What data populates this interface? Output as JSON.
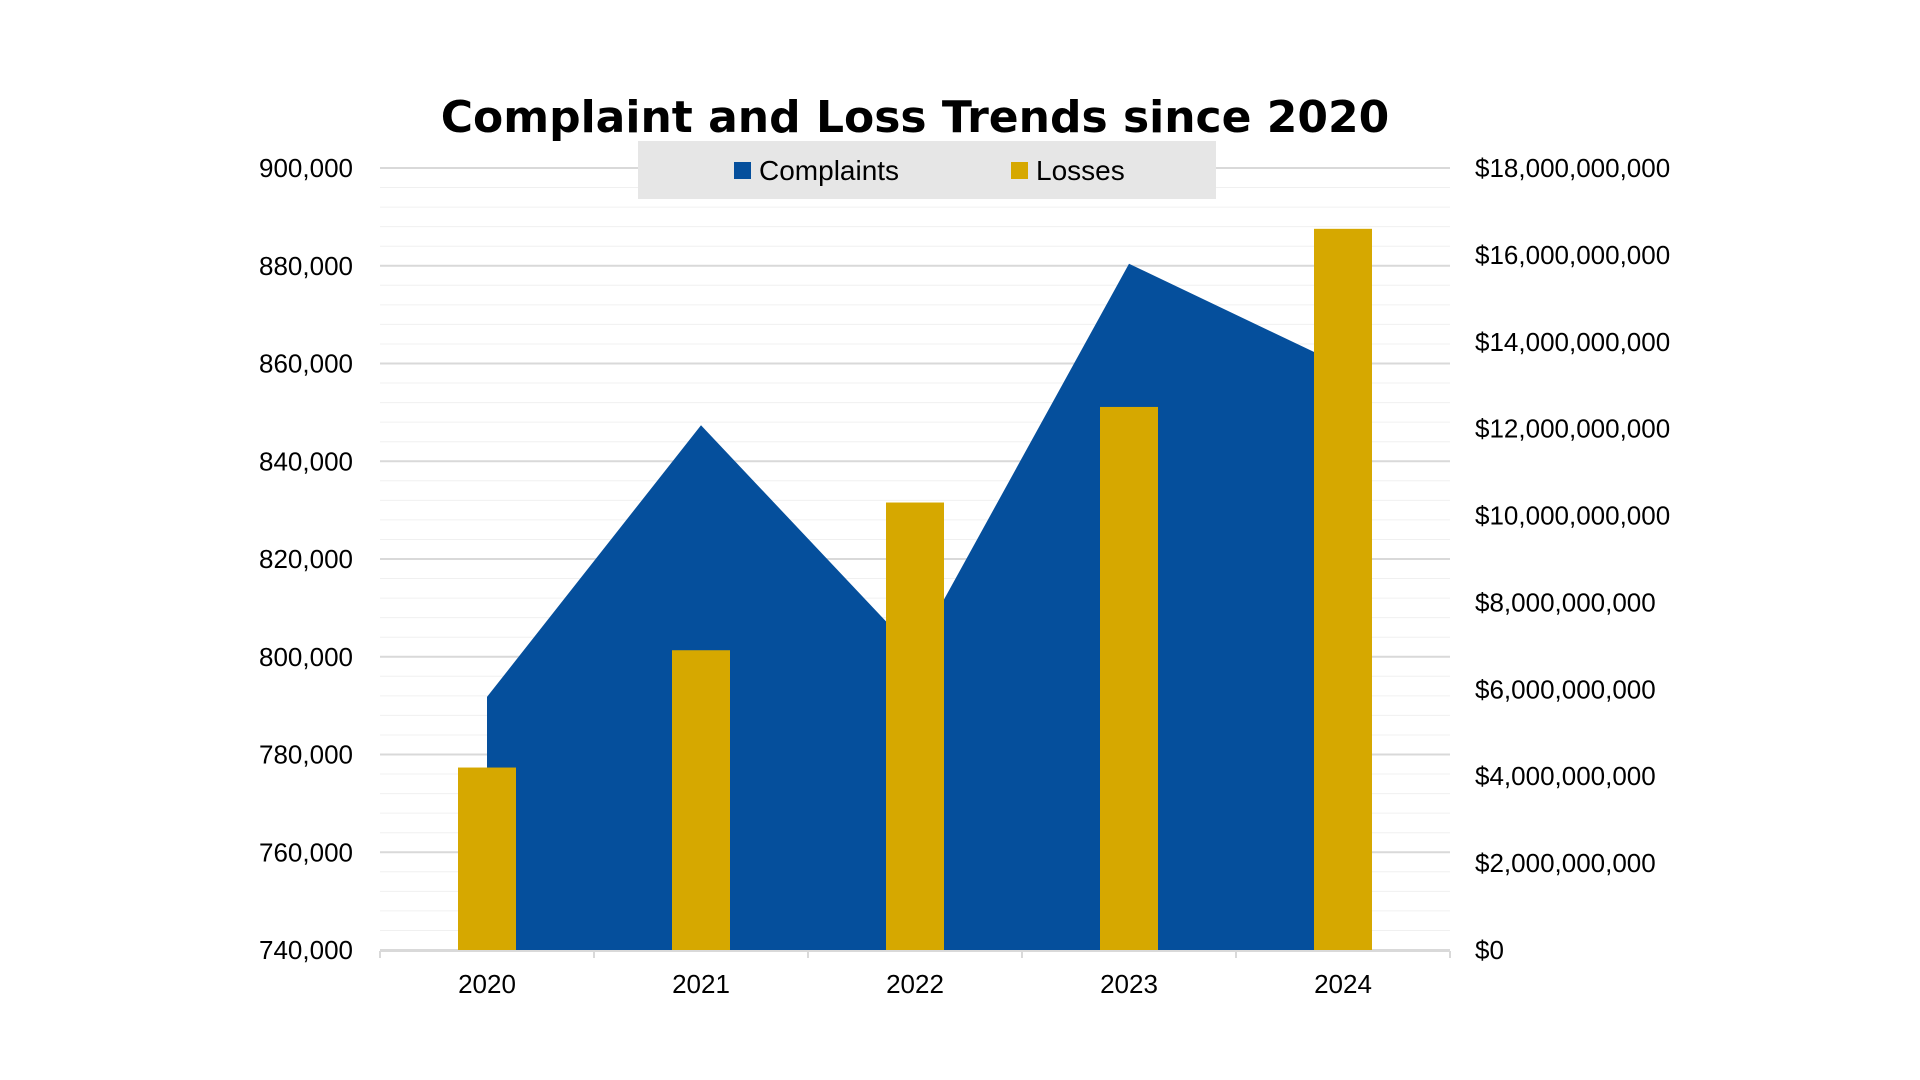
{
  "chart_data": {
    "type": "bar",
    "title": "Complaint and Loss Trends since 2020",
    "categories": [
      "2020",
      "2021",
      "2022",
      "2023",
      "2024"
    ],
    "series": [
      {
        "name": "Complaints",
        "chart_type": "area",
        "axis": "left",
        "color": "#054f9c",
        "values": [
          791790,
          847376,
          800944,
          880418,
          859532
        ]
      },
      {
        "name": "Losses",
        "chart_type": "bar",
        "axis": "right",
        "color": "#d6a800",
        "values": [
          4200000000,
          6900000000,
          10300000000,
          12500000000,
          16600000000
        ]
      }
    ],
    "y_left": {
      "range": [
        740000,
        900000
      ],
      "tick_labels": [
        "740,000",
        "760,000",
        "780,000",
        "800,000",
        "820,000",
        "840,000",
        "860,000",
        "880,000",
        "900,000"
      ]
    },
    "y_right": {
      "range": [
        0,
        18000000000
      ],
      "tick_labels": [
        "$0",
        "$2,000,000,000",
        "$4,000,000,000",
        "$6,000,000,000",
        "$8,000,000,000",
        "$10,000,000,000",
        "$12,000,000,000",
        "$14,000,000,000",
        "$16,000,000,000",
        "$18,000,000,000"
      ]
    },
    "grid": true,
    "legend": {
      "position": "top",
      "items": [
        "Complaints",
        "Losses"
      ],
      "background": "#e6e6e6"
    }
  }
}
